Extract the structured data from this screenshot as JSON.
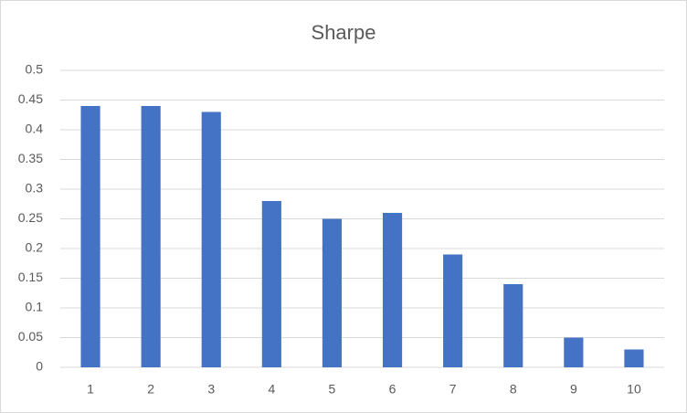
{
  "chart_data": {
    "type": "bar",
    "title": "Sharpe",
    "categories": [
      "1",
      "2",
      "3",
      "4",
      "5",
      "6",
      "7",
      "8",
      "9",
      "10"
    ],
    "values": [
      0.44,
      0.44,
      0.43,
      0.28,
      0.25,
      0.26,
      0.19,
      0.14,
      0.05,
      0.03
    ],
    "color": "#4472c4",
    "ylim": [
      0,
      0.5
    ],
    "yticks": [
      0,
      0.05,
      0.1,
      0.15,
      0.2,
      0.25,
      0.3,
      0.35,
      0.4,
      0.45,
      0.5
    ],
    "grid": true
  }
}
